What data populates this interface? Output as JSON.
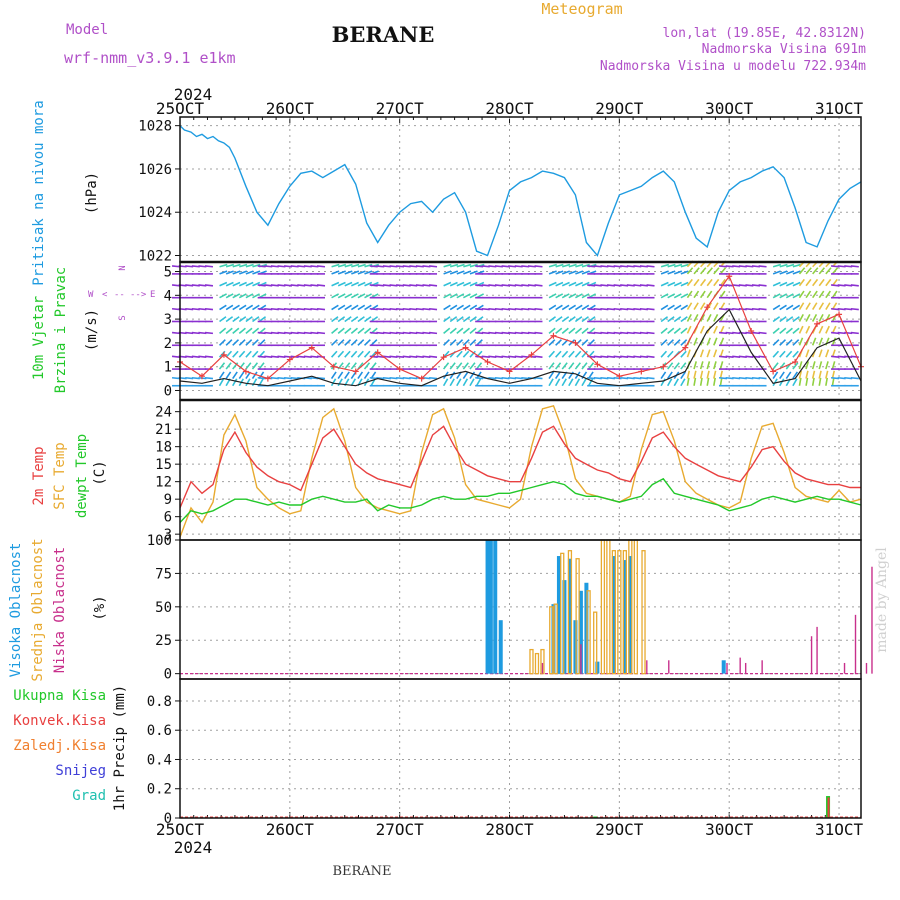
{
  "header": {
    "model_label": "Model",
    "model_value": "wrf-nmm_v3.9.1 e1km",
    "station": "BERANE",
    "product": "Meteogram",
    "lonlat": "lon,lat (19.85E, 42.8312N)",
    "elevation": "Nadmorska Visina 691m",
    "model_elevation": "Nadmorska Visina u modelu 722.934m",
    "footer_station": "BERANE",
    "credit": "made by Angel"
  },
  "colors": {
    "pressure": "#1e9be0",
    "temp2m": "#e84040",
    "sfc": "#e8aa30",
    "dew": "#22c82a",
    "cloud_high": "#1e9be0",
    "cloud_mid": "#e8aa30",
    "cloud_low": "#c8308c",
    "precip_total": "#22c82a",
    "precip_conv": "#e84040",
    "precip_frozen": "#f08030",
    "snow": "#4040d8",
    "hail": "#20c0b0",
    "wind_gust": "#e84040",
    "wind_speed": "#202020",
    "label_purple": "#b050c8",
    "label_orange": "#e8aa30",
    "credit": "#d0d0d0"
  },
  "time_axis": {
    "year": "2024",
    "ticks": [
      "25OCT",
      "26OCT",
      "27OCT",
      "28OCT",
      "29OCT",
      "30OCT",
      "31OCT"
    ]
  },
  "panels": {
    "pressure": {
      "label": "Pritisak na nivou mora",
      "unit": "(hPa)",
      "ticks": [
        "1022",
        "1024",
        "1026",
        "1028"
      ]
    },
    "wind": {
      "label_line1": "10m Vjetar",
      "label_line2": "Brzina i Pravac",
      "unit": "(m/s)",
      "ticks": [
        "0",
        "1",
        "2",
        "3",
        "4",
        "5"
      ],
      "compass": [
        "N",
        "S",
        "W",
        "E",
        "<",
        "--",
        "-->"
      ]
    },
    "temp": {
      "label_2m": "2m Temp",
      "label_sfc": "SFC Temp",
      "label_dew": "dewpt Temp",
      "unit": "(C)",
      "ticks": [
        "3",
        "6",
        "9",
        "12",
        "15",
        "18",
        "21",
        "24"
      ]
    },
    "cloud": {
      "label_high": "Visoka Oblacnost",
      "label_mid": "Srednja Oblacnost",
      "label_low": "Niska Oblacnost",
      "unit": "(%)",
      "ticks": [
        "0",
        "25",
        "50",
        "75",
        "100"
      ]
    },
    "precip": {
      "legend": [
        "Ukupna Kisa",
        "Konvek.Kisa",
        "Zaledj.Kisa",
        "Snijeg",
        "Grad"
      ],
      "unit": "1hr Precip (mm)",
      "ticks": [
        "0",
        "0.2",
        "0.4",
        "0.6",
        "0.8"
      ]
    }
  },
  "chart_data": {
    "type": "line",
    "x_unit": "days from 25OCT 00UTC",
    "pressure": {
      "ylim": [
        1021.7,
        1028.4
      ],
      "x": [
        0,
        0.04,
        0.1,
        0.15,
        0.2,
        0.25,
        0.3,
        0.35,
        0.4,
        0.45,
        0.5,
        0.6,
        0.7,
        0.8,
        0.9,
        1.0,
        1.1,
        1.2,
        1.3,
        1.4,
        1.5,
        1.6,
        1.7,
        1.8,
        1.9,
        2.0,
        2.1,
        2.2,
        2.3,
        2.4,
        2.5,
        2.6,
        2.7,
        2.8,
        2.9,
        3.0,
        3.1,
        3.2,
        3.3,
        3.4,
        3.5,
        3.6,
        3.7,
        3.8,
        3.9,
        4.0,
        4.1,
        4.2,
        4.3,
        4.4,
        4.5,
        4.6,
        4.7,
        4.8,
        4.9,
        5.0,
        5.1,
        5.2,
        5.3,
        5.4,
        5.5,
        5.6,
        5.7,
        5.8,
        5.9,
        6.0,
        6.1,
        6.2
      ],
      "y": [
        1028.0,
        1027.8,
        1027.7,
        1027.5,
        1027.6,
        1027.4,
        1027.5,
        1027.3,
        1027.2,
        1027.0,
        1026.5,
        1025.2,
        1024.0,
        1023.4,
        1024.4,
        1025.2,
        1025.8,
        1025.9,
        1025.6,
        1025.9,
        1026.2,
        1025.3,
        1023.5,
        1022.6,
        1023.4,
        1024.0,
        1024.4,
        1024.5,
        1024.0,
        1024.6,
        1024.9,
        1024.0,
        1022.2,
        1022.0,
        1023.4,
        1025.0,
        1025.4,
        1025.6,
        1025.9,
        1025.8,
        1025.6,
        1024.8,
        1022.6,
        1022.0,
        1023.5,
        1024.8,
        1025.0,
        1025.2,
        1025.6,
        1025.9,
        1025.4,
        1024.0,
        1022.8,
        1022.4,
        1024.0,
        1025.0,
        1025.4,
        1025.6,
        1025.9,
        1026.1,
        1025.6,
        1024.2,
        1022.6,
        1022.4,
        1023.6,
        1024.6,
        1025.1,
        1025.4
      ]
    },
    "wind": {
      "ylim": [
        -0.4,
        5.4
      ],
      "x": [
        0,
        0.2,
        0.4,
        0.6,
        0.8,
        1.0,
        1.2,
        1.4,
        1.6,
        1.8,
        2.0,
        2.2,
        2.4,
        2.6,
        2.8,
        3.0,
        3.2,
        3.4,
        3.6,
        3.8,
        4.0,
        4.2,
        4.4,
        4.6,
        4.8,
        5.0,
        5.2,
        5.4,
        5.6,
        5.8,
        6.0,
        6.2
      ],
      "gust": [
        1.2,
        0.6,
        1.5,
        0.8,
        0.5,
        1.3,
        1.8,
        1.0,
        0.8,
        1.6,
        0.9,
        0.5,
        1.4,
        1.8,
        1.2,
        0.8,
        1.5,
        2.3,
        2.0,
        1.1,
        0.6,
        0.8,
        1.0,
        1.8,
        3.5,
        4.8,
        2.5,
        0.8,
        1.2,
        2.8,
        3.2,
        1.0
      ],
      "speed": [
        0.4,
        0.3,
        0.5,
        0.3,
        0.2,
        0.4,
        0.6,
        0.3,
        0.2,
        0.5,
        0.3,
        0.2,
        0.6,
        0.8,
        0.5,
        0.3,
        0.5,
        0.8,
        0.7,
        0.3,
        0.2,
        0.3,
        0.4,
        0.8,
        2.5,
        3.4,
        1.6,
        0.3,
        0.5,
        1.8,
        2.2,
        0.4
      ]
    },
    "temperature": {
      "ylim": [
        2,
        26
      ],
      "x": [
        0,
        0.1,
        0.2,
        0.3,
        0.4,
        0.5,
        0.6,
        0.7,
        0.8,
        0.9,
        1.0,
        1.1,
        1.2,
        1.3,
        1.4,
        1.5,
        1.6,
        1.7,
        1.8,
        1.9,
        2.0,
        2.1,
        2.2,
        2.3,
        2.4,
        2.5,
        2.6,
        2.7,
        2.8,
        2.9,
        3.0,
        3.1,
        3.2,
        3.3,
        3.4,
        3.5,
        3.6,
        3.7,
        3.8,
        3.9,
        4.0,
        4.1,
        4.2,
        4.3,
        4.4,
        4.5,
        4.6,
        4.7,
        4.8,
        4.9,
        5.0,
        5.1,
        5.2,
        5.3,
        5.4,
        5.5,
        5.6,
        5.7,
        5.8,
        5.9,
        6.0,
        6.1,
        6.2
      ],
      "t2m": [
        7.5,
        12.0,
        10.0,
        11.5,
        17.5,
        20.5,
        17.0,
        14.5,
        13.0,
        12.0,
        11.5,
        10.5,
        15.0,
        19.5,
        21.0,
        18.0,
        15.0,
        13.5,
        12.5,
        12.0,
        11.5,
        11.0,
        15.5,
        20.0,
        21.5,
        18.0,
        15.0,
        14.0,
        13.0,
        12.5,
        12.0,
        12.0,
        16.0,
        20.5,
        21.5,
        18.5,
        16.0,
        15.0,
        14.0,
        13.5,
        12.5,
        12.0,
        15.5,
        19.5,
        20.5,
        18.0,
        16.0,
        15.0,
        14.0,
        13.0,
        12.5,
        12.0,
        14.5,
        17.5,
        18.0,
        15.5,
        13.5,
        12.5,
        12.0,
        11.5,
        11.5,
        11.0,
        11.0
      ],
      "sfc": [
        2.5,
        7.5,
        5.0,
        8.5,
        20.0,
        23.5,
        19.0,
        11.0,
        9.0,
        7.5,
        6.5,
        7.0,
        16.0,
        23.0,
        24.5,
        19.0,
        11.0,
        8.5,
        7.5,
        7.0,
        6.5,
        7.0,
        17.0,
        23.5,
        24.5,
        19.5,
        11.5,
        9.0,
        8.5,
        8.0,
        7.5,
        9.0,
        18.0,
        24.5,
        25.0,
        20.0,
        12.5,
        10.0,
        9.5,
        9.0,
        8.5,
        9.5,
        17.5,
        23.5,
        24.0,
        19.0,
        12.0,
        10.0,
        9.0,
        8.0,
        7.5,
        8.5,
        16.0,
        21.5,
        22.0,
        17.0,
        11.0,
        9.5,
        9.0,
        8.5,
        10.5,
        8.5,
        9.0
      ],
      "dew": [
        5.0,
        7.0,
        6.5,
        7.0,
        8.0,
        9.0,
        9.0,
        8.5,
        8.0,
        8.5,
        8.0,
        8.0,
        9.0,
        9.5,
        9.0,
        8.5,
        8.5,
        9.0,
        7.0,
        8.0,
        7.5,
        7.5,
        8.0,
        9.0,
        9.5,
        9.0,
        9.0,
        9.5,
        9.5,
        10.0,
        10.0,
        10.5,
        11.0,
        11.5,
        12.0,
        11.5,
        10.0,
        9.5,
        9.5,
        9.0,
        8.5,
        9.0,
        9.5,
        11.5,
        12.5,
        10.0,
        9.5,
        9.0,
        8.5,
        8.0,
        7.0,
        7.5,
        8.0,
        9.0,
        9.5,
        9.0,
        8.5,
        9.0,
        9.5,
        9.0,
        9.0,
        8.5,
        8.0
      ]
    },
    "cloud": {
      "ylim": [
        -4,
        100
      ],
      "high": [
        [
          2.8,
          100
        ],
        [
          2.83,
          100
        ],
        [
          2.87,
          100
        ],
        [
          2.92,
          40
        ],
        [
          3.4,
          52
        ],
        [
          3.45,
          88
        ],
        [
          3.5,
          70
        ],
        [
          3.55,
          86
        ],
        [
          3.6,
          40
        ],
        [
          3.65,
          62
        ],
        [
          3.7,
          68
        ],
        [
          3.8,
          9
        ],
        [
          3.95,
          88
        ],
        [
          4.05,
          85
        ],
        [
          4.1,
          88
        ],
        [
          4.95,
          10
        ]
      ],
      "mid": [
        [
          3.2,
          18
        ],
        [
          3.25,
          15
        ],
        [
          3.3,
          18
        ],
        [
          3.38,
          50
        ],
        [
          3.42,
          52
        ],
        [
          3.48,
          90
        ],
        [
          3.55,
          92
        ],
        [
          3.62,
          86
        ],
        [
          3.72,
          62
        ],
        [
          3.78,
          46
        ],
        [
          3.85,
          100
        ],
        [
          3.9,
          100
        ],
        [
          3.95,
          92
        ],
        [
          4.0,
          92
        ],
        [
          4.05,
          92
        ],
        [
          4.1,
          100
        ],
        [
          4.15,
          100
        ],
        [
          4.22,
          92
        ]
      ],
      "low": [
        [
          3.3,
          8
        ],
        [
          3.65,
          22
        ],
        [
          4.25,
          10
        ],
        [
          4.45,
          10
        ],
        [
          4.98,
          8
        ],
        [
          5.1,
          12
        ],
        [
          5.15,
          8
        ],
        [
          5.3,
          10
        ],
        [
          5.75,
          28
        ],
        [
          5.8,
          35
        ],
        [
          6.05,
          8
        ],
        [
          6.15,
          44
        ],
        [
          6.25,
          8
        ],
        [
          6.3,
          80
        ]
      ]
    },
    "precip": {
      "ylim": [
        0,
        0.95
      ],
      "events": [
        {
          "x": 3.78,
          "total": 0.01,
          "conv": 0.0
        },
        {
          "x": 5.9,
          "total": 0.15,
          "conv": 0.14
        }
      ]
    }
  }
}
